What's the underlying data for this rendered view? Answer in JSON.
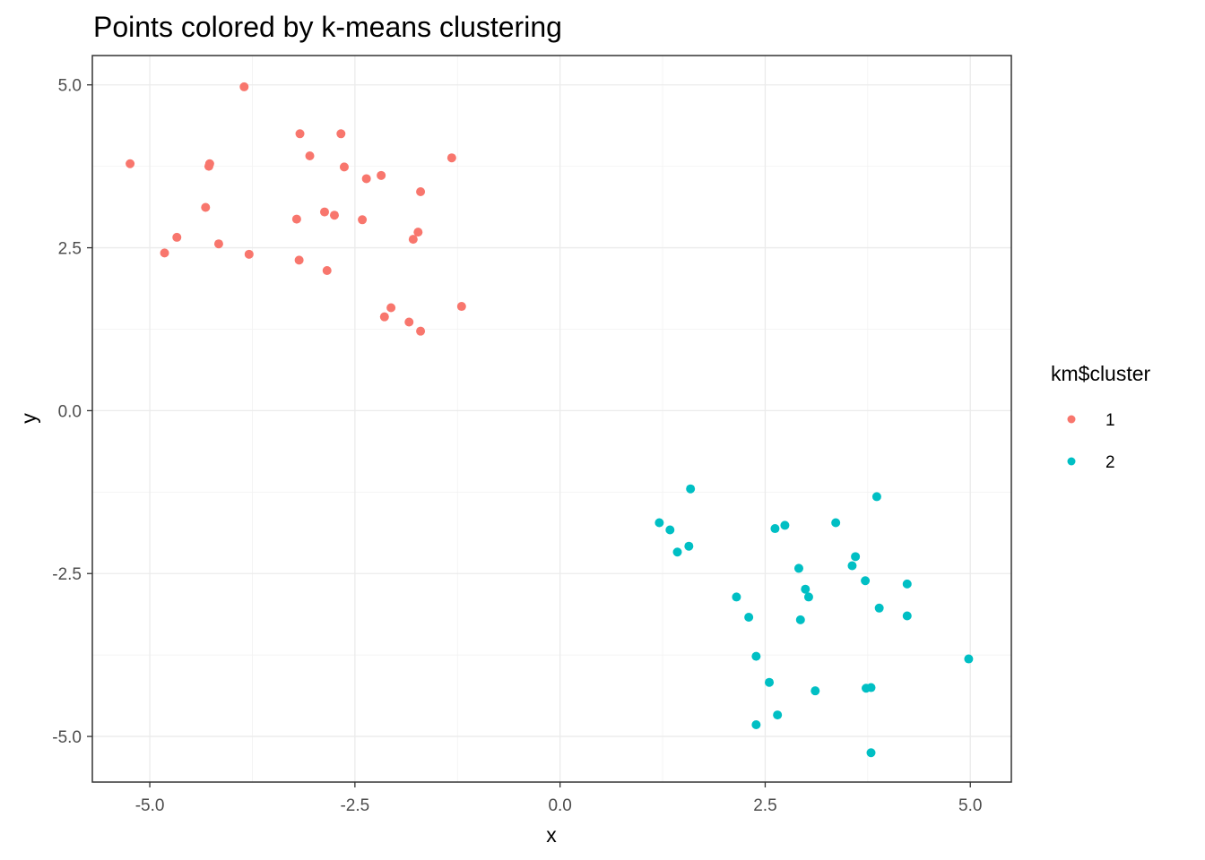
{
  "chart_data": {
    "type": "scatter",
    "title": "Points colored by k-means clustering",
    "xlabel": "x",
    "ylabel": "y",
    "xlim": [
      -5.7,
      5.5
    ],
    "ylim": [
      -5.7,
      5.45
    ],
    "x_ticks": [
      -5.0,
      -2.5,
      0.0,
      2.5,
      5.0
    ],
    "x_tick_labels": [
      "-5.0",
      "-2.5",
      "0.0",
      "2.5",
      "5.0"
    ],
    "y_ticks": [
      -5.0,
      -2.5,
      0.0,
      2.5,
      5.0
    ],
    "y_tick_labels": [
      "-5.0",
      "-2.5",
      "0.0",
      "2.5",
      "5.0"
    ],
    "grid": true,
    "legend": {
      "title": "km$cluster",
      "placement": "right",
      "entries": [
        "1",
        "2"
      ]
    },
    "series": [
      {
        "name": "1",
        "color": "#F8766D",
        "points": [
          [
            -3.85,
            4.97
          ],
          [
            -5.24,
            3.79
          ],
          [
            -3.17,
            4.25
          ],
          [
            -2.67,
            4.25
          ],
          [
            -3.05,
            3.91
          ],
          [
            -2.63,
            3.74
          ],
          [
            -4.27,
            3.79
          ],
          [
            -4.28,
            3.75
          ],
          [
            -1.32,
            3.88
          ],
          [
            -2.36,
            3.56
          ],
          [
            -2.18,
            3.61
          ],
          [
            -1.7,
            3.36
          ],
          [
            -4.32,
            3.12
          ],
          [
            -3.21,
            2.94
          ],
          [
            -2.87,
            3.05
          ],
          [
            -2.75,
            3.0
          ],
          [
            -2.41,
            2.93
          ],
          [
            -1.73,
            2.74
          ],
          [
            -1.79,
            2.63
          ],
          [
            -4.67,
            2.66
          ],
          [
            -4.16,
            2.56
          ],
          [
            -4.82,
            2.42
          ],
          [
            -3.79,
            2.4
          ],
          [
            -3.18,
            2.31
          ],
          [
            -2.84,
            2.15
          ],
          [
            -1.2,
            1.6
          ],
          [
            -2.06,
            1.58
          ],
          [
            -2.14,
            1.44
          ],
          [
            -1.84,
            1.36
          ],
          [
            -1.7,
            1.22
          ]
        ]
      },
      {
        "name": "2",
        "color": "#00BFC4",
        "points": [
          [
            1.59,
            -1.2
          ],
          [
            3.86,
            -1.32
          ],
          [
            1.21,
            -1.72
          ],
          [
            1.34,
            -1.83
          ],
          [
            1.57,
            -2.08
          ],
          [
            1.43,
            -2.17
          ],
          [
            2.62,
            -1.81
          ],
          [
            2.74,
            -1.76
          ],
          [
            3.36,
            -1.72
          ],
          [
            3.6,
            -2.24
          ],
          [
            3.56,
            -2.38
          ],
          [
            2.91,
            -2.42
          ],
          [
            3.72,
            -2.61
          ],
          [
            4.23,
            -2.66
          ],
          [
            2.99,
            -2.74
          ],
          [
            3.03,
            -2.86
          ],
          [
            2.15,
            -2.86
          ],
          [
            3.89,
            -3.03
          ],
          [
            4.23,
            -3.15
          ],
          [
            2.3,
            -3.17
          ],
          [
            2.93,
            -3.21
          ],
          [
            2.39,
            -3.77
          ],
          [
            4.98,
            -3.81
          ],
          [
            2.55,
            -4.17
          ],
          [
            3.11,
            -4.3
          ],
          [
            3.73,
            -4.26
          ],
          [
            3.79,
            -4.25
          ],
          [
            2.65,
            -4.67
          ],
          [
            2.39,
            -4.82
          ],
          [
            3.79,
            -5.25
          ]
        ]
      }
    ]
  }
}
